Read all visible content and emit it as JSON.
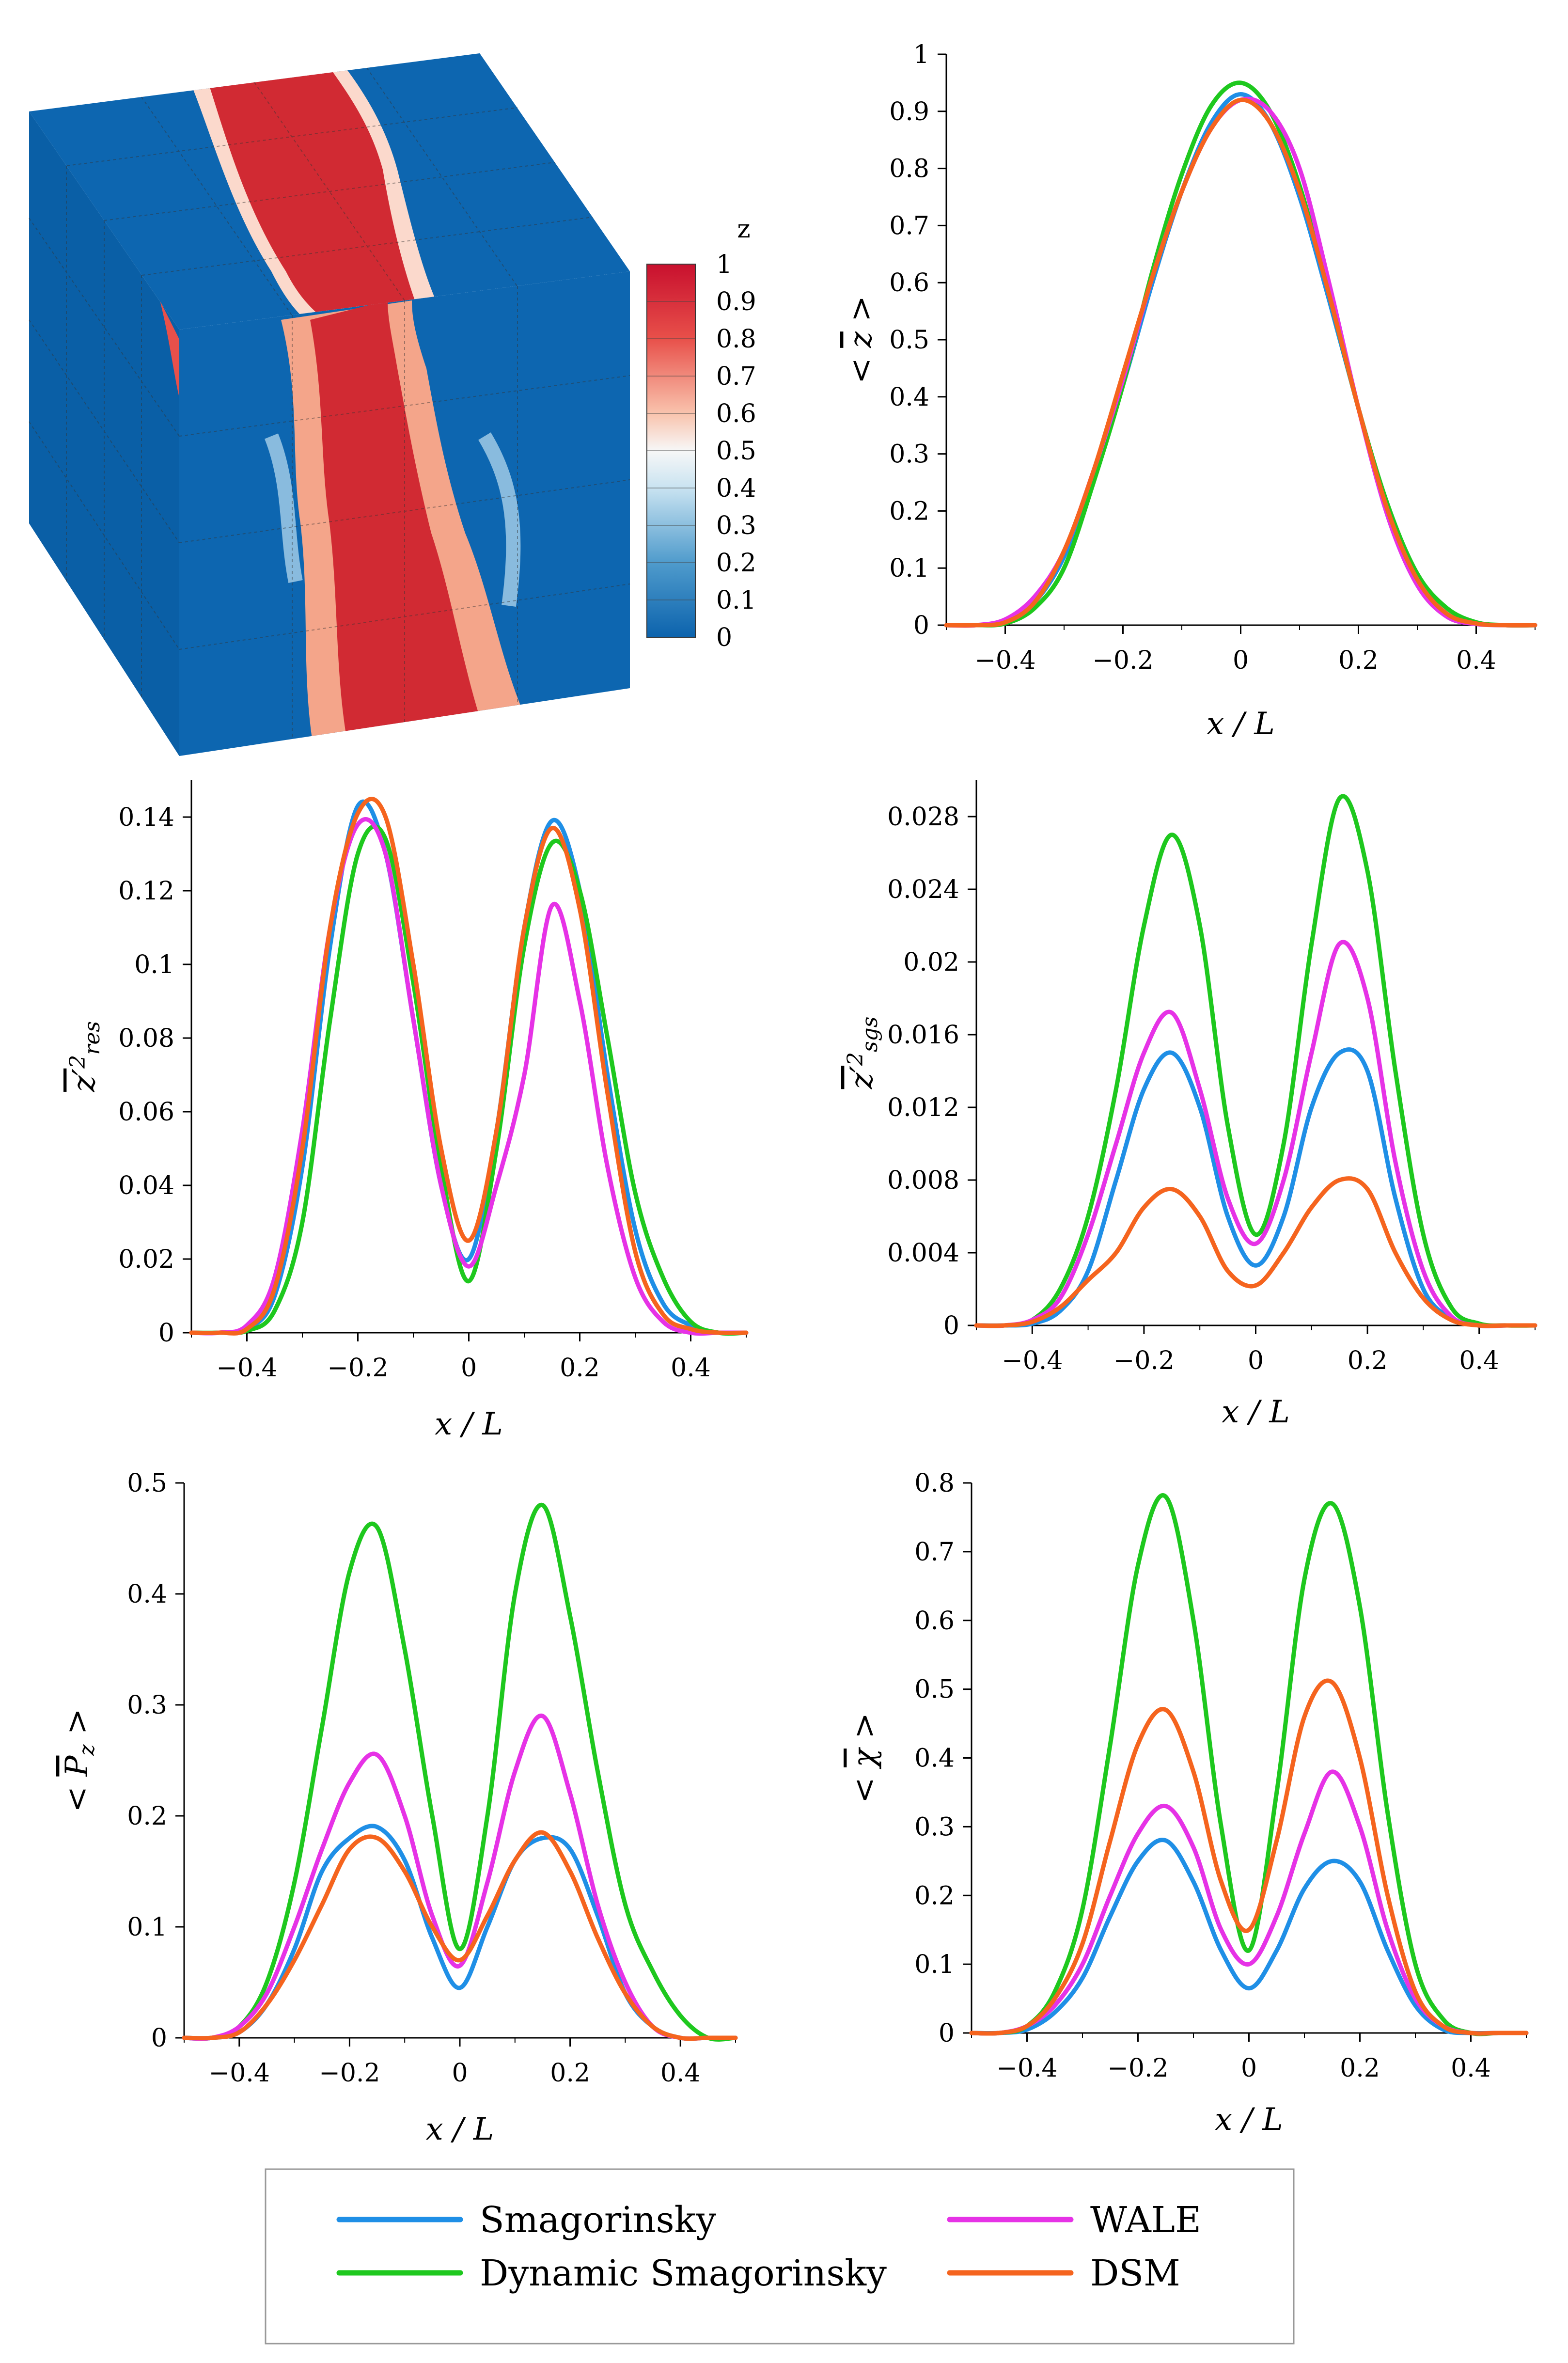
{
  "colors": {
    "smagorinsky": "#1f8fe6",
    "dynamic_smagorinsky": "#1ec81e",
    "wale": "#e632e6",
    "dsm": "#f5641e"
  },
  "cube": {
    "colorbar_title": "z",
    "colorbar_ticks": [
      "1",
      "0.9",
      "0.8",
      "0.7",
      "0.6",
      "0.5",
      "0.4",
      "0.3",
      "0.2",
      "0.1",
      "0"
    ]
  },
  "legend": {
    "entries": [
      {
        "name": "Smagorinsky",
        "key": "smagorinsky"
      },
      {
        "name": "WALE",
        "key": "wale"
      },
      {
        "name": "Dynamic Smagorinsky",
        "key": "dynamic_smagorinsky"
      },
      {
        "name": "DSM",
        "key": "dsm"
      }
    ]
  },
  "chart_data": [
    {
      "id": "mean_z",
      "type": "line",
      "title": "",
      "xlabel": "x / L",
      "ylabel": "< z̄ >",
      "xlim": [
        -0.5,
        0.5
      ],
      "ylim": [
        0,
        1
      ],
      "xticks": [
        -0.4,
        -0.2,
        0,
        0.2,
        0.4
      ],
      "xtick_labels": [
        "−0.4",
        "−0.2",
        "0",
        "0.2",
        "0.4"
      ],
      "yticks": [
        0,
        0.1,
        0.2,
        0.3,
        0.4,
        0.5,
        0.6,
        0.7,
        0.8,
        0.9,
        1
      ],
      "ytick_labels": [
        "0",
        "0.1",
        "0.2",
        "0.3",
        "0.4",
        "0.5",
        "0.6",
        "0.7",
        "0.8",
        "0.9",
        "1"
      ],
      "x": [
        -0.5,
        -0.45,
        -0.4,
        -0.35,
        -0.3,
        -0.25,
        -0.2,
        -0.15,
        -0.1,
        -0.05,
        0,
        0.05,
        0.1,
        0.15,
        0.2,
        0.25,
        0.3,
        0.35,
        0.4,
        0.45,
        0.5
      ],
      "series": [
        {
          "name": "Smagorinsky",
          "key": "smagorinsky",
          "values": [
            0,
            0,
            0.005,
            0.04,
            0.12,
            0.26,
            0.42,
            0.6,
            0.76,
            0.88,
            0.93,
            0.88,
            0.75,
            0.57,
            0.38,
            0.2,
            0.08,
            0.02,
            0.003,
            0,
            0
          ]
        },
        {
          "name": "Dynamic Smagorinsky",
          "key": "dynamic_smagorinsky",
          "values": [
            0,
            0,
            0.003,
            0.03,
            0.1,
            0.25,
            0.42,
            0.62,
            0.79,
            0.91,
            0.95,
            0.9,
            0.77,
            0.58,
            0.38,
            0.21,
            0.09,
            0.03,
            0.005,
            0,
            0
          ]
        },
        {
          "name": "WALE",
          "key": "wale",
          "values": [
            0,
            0,
            0.01,
            0.05,
            0.13,
            0.27,
            0.43,
            0.61,
            0.76,
            0.87,
            0.92,
            0.9,
            0.8,
            0.6,
            0.38,
            0.19,
            0.07,
            0.015,
            0.002,
            0,
            0
          ]
        },
        {
          "name": "DSM",
          "key": "dsm",
          "values": [
            0,
            0,
            0.005,
            0.04,
            0.13,
            0.27,
            0.44,
            0.61,
            0.76,
            0.87,
            0.92,
            0.88,
            0.76,
            0.58,
            0.38,
            0.2,
            0.08,
            0.02,
            0.003,
            0,
            0
          ]
        }
      ]
    },
    {
      "id": "z_var_res",
      "type": "line",
      "title": "",
      "xlabel": "x / L",
      "ylabel": "z'² res",
      "xlim": [
        -0.5,
        0.5
      ],
      "ylim": [
        0,
        0.15
      ],
      "xticks": [
        -0.4,
        -0.2,
        0,
        0.2,
        0.4
      ],
      "xtick_labels": [
        "−0.4",
        "−0.2",
        "0",
        "0.2",
        "0.4"
      ],
      "yticks": [
        0,
        0.02,
        0.04,
        0.06,
        0.08,
        0.1,
        0.12,
        0.14
      ],
      "ytick_labels": [
        "0",
        "0.02",
        "0.04",
        "0.06",
        "0.08",
        "0.1",
        "0.12",
        "0.14"
      ],
      "x": [
        -0.5,
        -0.45,
        -0.4,
        -0.35,
        -0.3,
        -0.25,
        -0.2,
        -0.15,
        -0.1,
        -0.05,
        0,
        0.05,
        0.1,
        0.15,
        0.2,
        0.25,
        0.3,
        0.35,
        0.4,
        0.45,
        0.5
      ],
      "series": [
        {
          "name": "Smagorinsky",
          "key": "smagorinsky",
          "values": [
            0,
            0,
            0.001,
            0.01,
            0.045,
            0.105,
            0.143,
            0.13,
            0.085,
            0.04,
            0.02,
            0.055,
            0.11,
            0.139,
            0.12,
            0.07,
            0.028,
            0.008,
            0.002,
            0,
            0
          ]
        },
        {
          "name": "Dynamic Smagorinsky",
          "key": "dynamic_smagorinsky",
          "values": [
            0,
            0,
            0.0005,
            0.006,
            0.03,
            0.085,
            0.13,
            0.134,
            0.095,
            0.045,
            0.014,
            0.05,
            0.105,
            0.133,
            0.12,
            0.08,
            0.038,
            0.015,
            0.003,
            0,
            0
          ]
        },
        {
          "name": "WALE",
          "key": "wale",
          "values": [
            0,
            0,
            0.002,
            0.015,
            0.055,
            0.11,
            0.138,
            0.13,
            0.085,
            0.04,
            0.018,
            0.04,
            0.07,
            0.116,
            0.09,
            0.045,
            0.015,
            0.003,
            0,
            0,
            0
          ]
        },
        {
          "name": "DSM",
          "key": "dsm",
          "values": [
            0,
            0,
            0.001,
            0.012,
            0.05,
            0.11,
            0.141,
            0.14,
            0.1,
            0.05,
            0.025,
            0.055,
            0.11,
            0.137,
            0.115,
            0.065,
            0.022,
            0.005,
            0.001,
            0,
            0
          ]
        }
      ]
    },
    {
      "id": "z_var_sgs",
      "type": "line",
      "title": "",
      "xlabel": "x / L",
      "ylabel": "z'² sgs",
      "xlim": [
        -0.5,
        0.5
      ],
      "ylim": [
        0,
        0.03
      ],
      "xticks": [
        -0.4,
        -0.2,
        0,
        0.2,
        0.4
      ],
      "xtick_labels": [
        "−0.4",
        "−0.2",
        "0",
        "0.2",
        "0.4"
      ],
      "yticks": [
        0,
        0.004,
        0.008,
        0.012,
        0.016,
        0.02,
        0.024,
        0.028
      ],
      "ytick_labels": [
        "0",
        "0.004",
        "0.008",
        "0.012",
        "0.016",
        "0.02",
        "0.024",
        "0.028"
      ],
      "x": [
        -0.5,
        -0.45,
        -0.4,
        -0.35,
        -0.3,
        -0.25,
        -0.2,
        -0.15,
        -0.1,
        -0.05,
        0,
        0.05,
        0.1,
        0.15,
        0.2,
        0.25,
        0.3,
        0.35,
        0.4,
        0.45,
        0.5
      ],
      "series": [
        {
          "name": "Smagorinsky",
          "key": "smagorinsky",
          "values": [
            0,
            0,
            0.0001,
            0.0008,
            0.003,
            0.008,
            0.013,
            0.015,
            0.012,
            0.006,
            0.0033,
            0.006,
            0.012,
            0.015,
            0.014,
            0.007,
            0.002,
            0.0004,
            0,
            0,
            0
          ]
        },
        {
          "name": "Dynamic Smagorinsky",
          "key": "dynamic_smagorinsky",
          "values": [
            0,
            0,
            0.0003,
            0.002,
            0.006,
            0.013,
            0.022,
            0.027,
            0.022,
            0.011,
            0.005,
            0.01,
            0.021,
            0.029,
            0.025,
            0.014,
            0.005,
            0.001,
            0.0001,
            0,
            0
          ]
        },
        {
          "name": "WALE",
          "key": "wale",
          "values": [
            0,
            0,
            0.0003,
            0.0015,
            0.005,
            0.01,
            0.015,
            0.0172,
            0.013,
            0.007,
            0.0045,
            0.008,
            0.015,
            0.021,
            0.018,
            0.009,
            0.003,
            0.0005,
            0,
            0,
            0
          ]
        },
        {
          "name": "DSM",
          "key": "dsm",
          "values": [
            0,
            0,
            0.0002,
            0.001,
            0.0025,
            0.004,
            0.0065,
            0.0075,
            0.006,
            0.003,
            0.0022,
            0.004,
            0.0065,
            0.008,
            0.0075,
            0.004,
            0.0015,
            0.0003,
            0,
            0,
            0
          ]
        }
      ]
    },
    {
      "id": "mean_Pz",
      "type": "line",
      "title": "",
      "xlabel": "x / L",
      "ylabel": "< P̄z >",
      "xlim": [
        -0.5,
        0.5
      ],
      "ylim": [
        0,
        0.5
      ],
      "xticks": [
        -0.4,
        -0.2,
        0,
        0.2,
        0.4
      ],
      "xtick_labels": [
        "−0.4",
        "−0.2",
        "0",
        "0.2",
        "0.4"
      ],
      "yticks": [
        0,
        0.1,
        0.2,
        0.3,
        0.4,
        0.5
      ],
      "ytick_labels": [
        "0",
        "0.1",
        "0.2",
        "0.3",
        "0.4",
        "0.5"
      ],
      "x": [
        -0.5,
        -0.45,
        -0.4,
        -0.35,
        -0.3,
        -0.25,
        -0.2,
        -0.15,
        -0.1,
        -0.05,
        0,
        0.05,
        0.1,
        0.15,
        0.2,
        0.25,
        0.3,
        0.35,
        0.4,
        0.45,
        0.5
      ],
      "series": [
        {
          "name": "Smagorinsky",
          "key": "smagorinsky",
          "values": [
            0,
            0,
            0.005,
            0.03,
            0.08,
            0.15,
            0.18,
            0.19,
            0.16,
            0.09,
            0.045,
            0.1,
            0.16,
            0.18,
            0.17,
            0.11,
            0.04,
            0.01,
            0,
            0,
            0
          ]
        },
        {
          "name": "Dynamic Smagorinsky",
          "key": "dynamic_smagorinsky",
          "values": [
            0,
            0,
            0.01,
            0.05,
            0.14,
            0.28,
            0.42,
            0.46,
            0.35,
            0.2,
            0.08,
            0.2,
            0.4,
            0.48,
            0.38,
            0.24,
            0.12,
            0.06,
            0.02,
            0,
            0
          ]
        },
        {
          "name": "WALE",
          "key": "wale",
          "values": [
            0,
            0,
            0.01,
            0.04,
            0.1,
            0.17,
            0.23,
            0.255,
            0.2,
            0.11,
            0.065,
            0.14,
            0.24,
            0.29,
            0.22,
            0.12,
            0.05,
            0.01,
            0,
            0,
            0
          ]
        },
        {
          "name": "DSM",
          "key": "dsm",
          "values": [
            0,
            0,
            0.005,
            0.03,
            0.07,
            0.12,
            0.17,
            0.18,
            0.15,
            0.1,
            0.07,
            0.11,
            0.16,
            0.185,
            0.15,
            0.09,
            0.04,
            0.01,
            0,
            0,
            0
          ]
        }
      ]
    },
    {
      "id": "mean_chi",
      "type": "line",
      "title": "",
      "xlabel": "x / L",
      "ylabel": "< χ̄ >",
      "xlim": [
        -0.5,
        0.5
      ],
      "ylim": [
        0,
        0.8
      ],
      "xticks": [
        -0.4,
        -0.2,
        0,
        0.2,
        0.4
      ],
      "xtick_labels": [
        "−0.4",
        "−0.2",
        "0",
        "0.2",
        "0.4"
      ],
      "yticks": [
        0,
        0.1,
        0.2,
        0.3,
        0.4,
        0.5,
        0.6,
        0.7,
        0.8
      ],
      "ytick_labels": [
        "0",
        "0.1",
        "0.2",
        "0.3",
        "0.4",
        "0.5",
        "0.6",
        "0.7",
        "0.8"
      ],
      "x": [
        -0.5,
        -0.45,
        -0.4,
        -0.35,
        -0.3,
        -0.25,
        -0.2,
        -0.15,
        -0.1,
        -0.05,
        0,
        0.05,
        0.1,
        0.15,
        0.2,
        0.25,
        0.3,
        0.35,
        0.4,
        0.45,
        0.5
      ],
      "series": [
        {
          "name": "Smagorinsky",
          "key": "smagorinsky",
          "values": [
            0,
            0,
            0.005,
            0.03,
            0.08,
            0.17,
            0.25,
            0.28,
            0.22,
            0.12,
            0.065,
            0.12,
            0.21,
            0.25,
            0.22,
            0.12,
            0.04,
            0.005,
            0,
            0,
            0
          ]
        },
        {
          "name": "Dynamic Smagorinsky",
          "key": "dynamic_smagorinsky",
          "values": [
            0,
            0,
            0.01,
            0.06,
            0.18,
            0.42,
            0.68,
            0.78,
            0.6,
            0.3,
            0.12,
            0.35,
            0.66,
            0.77,
            0.62,
            0.32,
            0.1,
            0.02,
            0,
            0,
            0
          ]
        },
        {
          "name": "WALE",
          "key": "wale",
          "values": [
            0,
            0,
            0.01,
            0.04,
            0.1,
            0.2,
            0.29,
            0.33,
            0.27,
            0.15,
            0.1,
            0.17,
            0.29,
            0.38,
            0.3,
            0.15,
            0.05,
            0.01,
            0,
            0,
            0
          ]
        },
        {
          "name": "DSM",
          "key": "dsm",
          "values": [
            0,
            0,
            0.01,
            0.05,
            0.13,
            0.28,
            0.42,
            0.47,
            0.38,
            0.22,
            0.15,
            0.28,
            0.46,
            0.51,
            0.4,
            0.2,
            0.06,
            0.01,
            0,
            0,
            0
          ]
        }
      ]
    }
  ]
}
